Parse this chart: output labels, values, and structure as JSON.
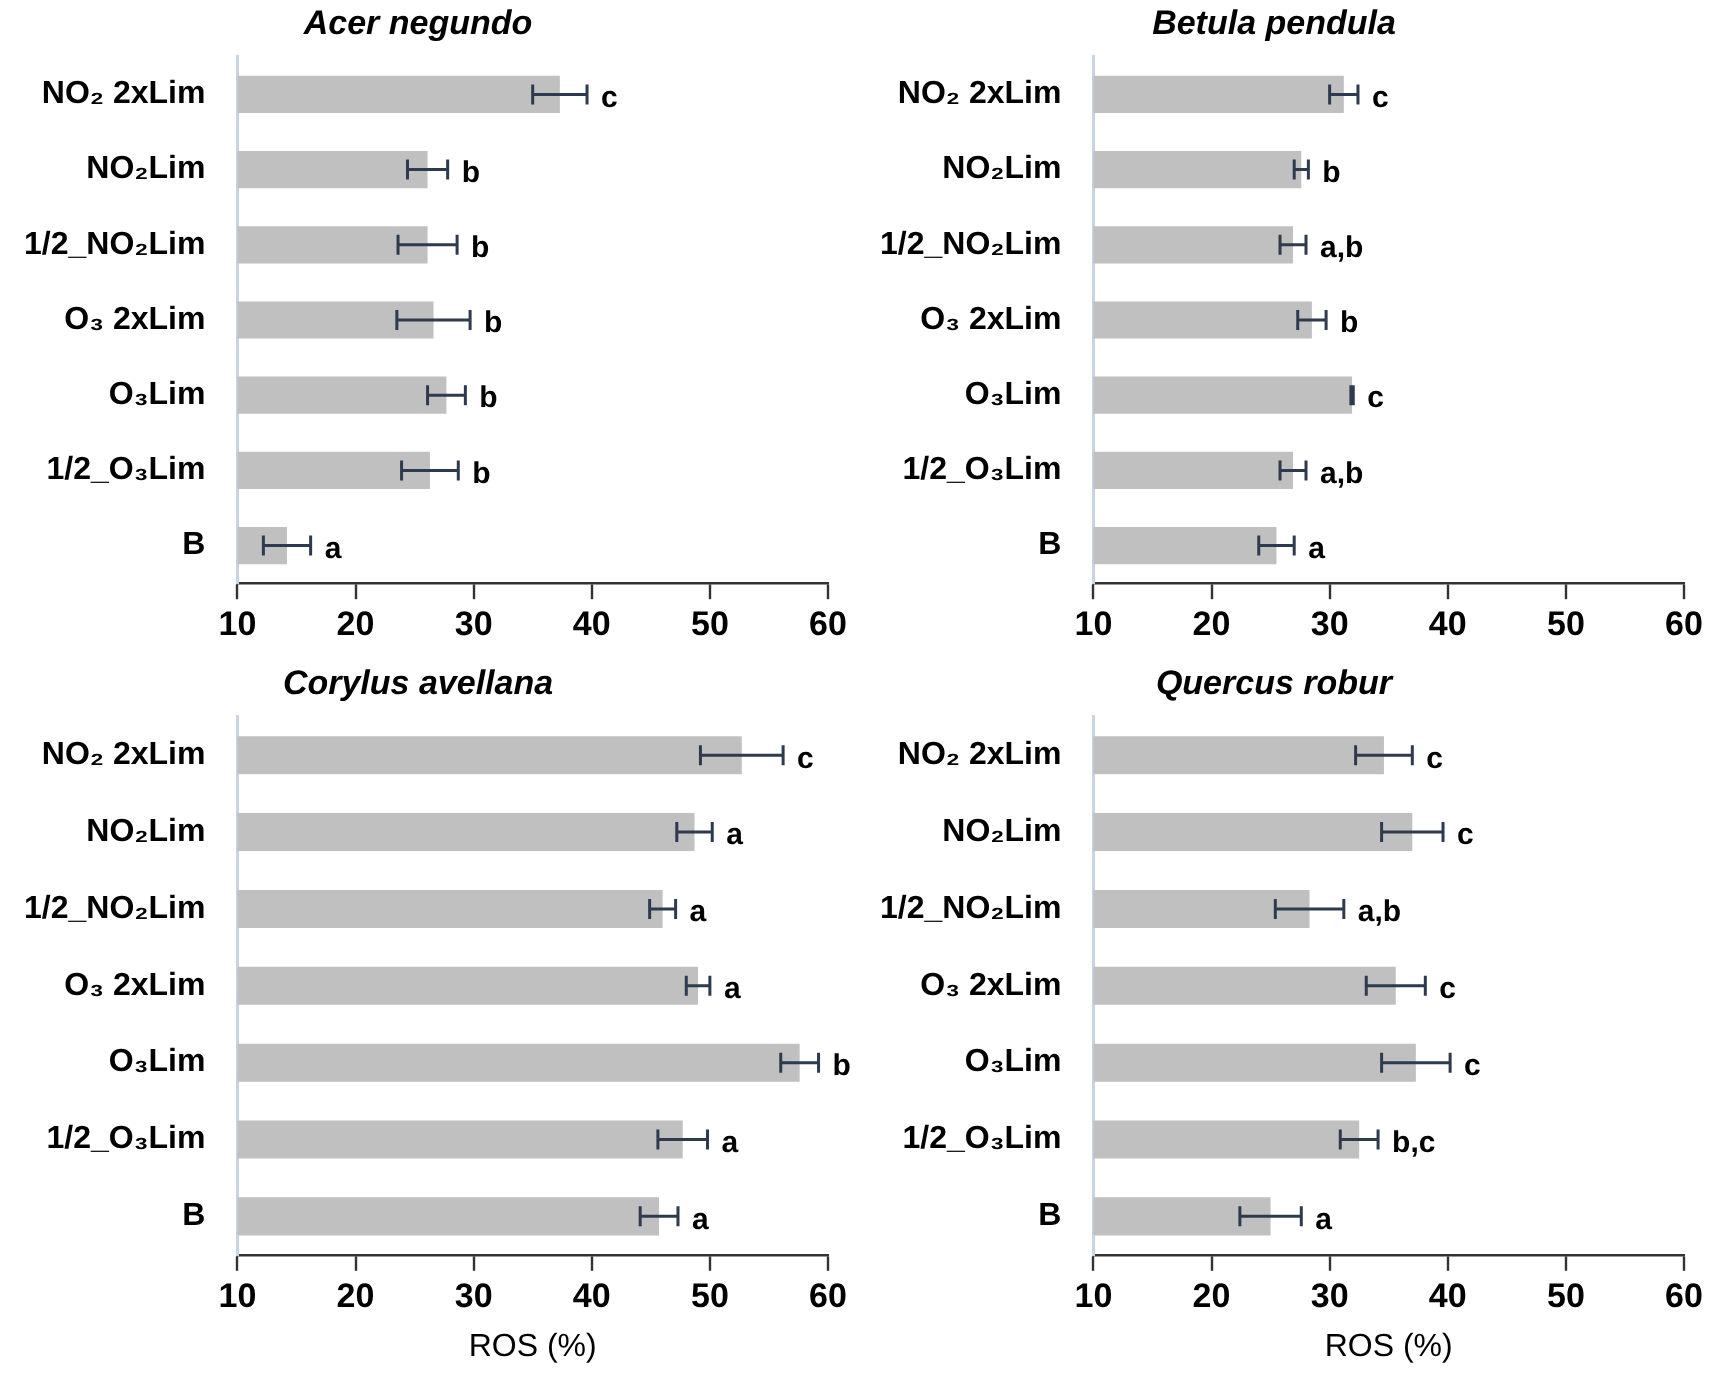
{
  "chart_data": [
    {
      "type": "bar",
      "orientation": "horizontal",
      "title": "Acer negundo",
      "categories": [
        "NO₂ 2xLim",
        "NO₂Lim",
        "1/2_NO₂Lim",
        "O₃ 2xLim",
        "O₃Lim",
        "1/2_O₃Lim",
        "B"
      ],
      "values": [
        37.3,
        26.1,
        26.1,
        26.6,
        27.7,
        26.3,
        14.2
      ],
      "errors": [
        2.3,
        1.7,
        2.5,
        3.1,
        1.6,
        2.4,
        2.0
      ],
      "value_labels": [
        "c",
        "b",
        "b",
        "b",
        "b",
        "b",
        "a"
      ],
      "color": "#c0c0c0",
      "xlim": [
        10,
        60
      ],
      "xticks": [
        10,
        20,
        30,
        40,
        50,
        60
      ]
    },
    {
      "type": "bar",
      "orientation": "horizontal",
      "title": "Betula pendula",
      "categories": [
        "NO₂ 2xLim",
        "NO₂Lim",
        "1/2_NO₂Lim",
        "O₃ 2xLim",
        "O₃Lim",
        "1/2_O₃Lim",
        "B"
      ],
      "values": [
        31.2,
        27.6,
        26.9,
        28.5,
        31.9,
        26.9,
        25.5
      ],
      "errors": [
        1.2,
        0.6,
        1.1,
        1.2,
        0.1,
        1.1,
        1.5
      ],
      "value_labels": [
        "c",
        "b",
        "a,b",
        "b",
        "c",
        "a,b",
        "a"
      ],
      "color": "#c0c0c0",
      "xlim": [
        10,
        60
      ],
      "xticks": [
        10,
        20,
        30,
        40,
        50,
        60
      ]
    },
    {
      "type": "bar",
      "orientation": "horizontal",
      "title": "Corylus avellana",
      "xlabel": "ROS (%)",
      "categories": [
        "NO₂ 2xLim",
        "NO₂Lim",
        "1/2_NO₂Lim",
        "O₃ 2xLim",
        "O₃Lim",
        "1/2_O₃Lim",
        "B"
      ],
      "values": [
        52.7,
        48.7,
        46.0,
        49.0,
        57.6,
        47.7,
        45.7
      ],
      "errors": [
        3.5,
        1.5,
        1.1,
        1.0,
        1.6,
        2.1,
        1.6
      ],
      "value_labels": [
        "c",
        "a",
        "a",
        "a",
        "b",
        "a",
        "a"
      ],
      "color": "#c0c0c0",
      "xlim": [
        10,
        60
      ],
      "xticks": [
        10,
        20,
        30,
        40,
        50,
        60
      ]
    },
    {
      "type": "bar",
      "orientation": "horizontal",
      "title": "Quercus robur",
      "xlabel": "ROS (%)",
      "categories": [
        "NO₂ 2xLim",
        "NO₂Lim",
        "1/2_NO₂Lim",
        "O₃ 2xLim",
        "O₃Lim",
        "1/2_O₃Lim",
        "B"
      ],
      "values": [
        34.6,
        37.0,
        28.3,
        35.6,
        37.3,
        32.5,
        25.0
      ],
      "errors": [
        2.4,
        2.6,
        2.9,
        2.5,
        2.9,
        1.6,
        2.6
      ],
      "value_labels": [
        "c",
        "c",
        "a,b",
        "c",
        "c",
        "b,c",
        "a"
      ],
      "color": "#c0c0c0",
      "xlim": [
        10,
        60
      ],
      "xticks": [
        10,
        20,
        30,
        40,
        50,
        60
      ]
    }
  ]
}
